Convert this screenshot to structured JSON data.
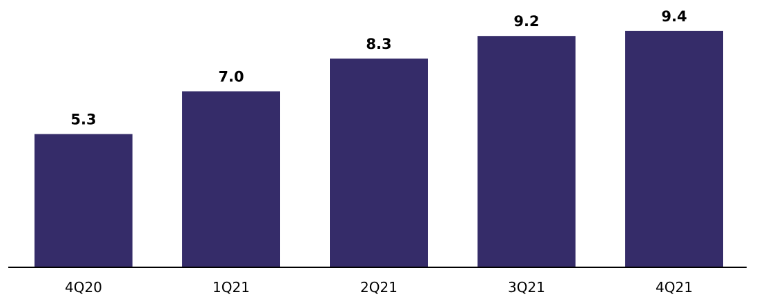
{
  "colors": {
    "bar": "#352C69",
    "axis": "#000000",
    "text": "#000000"
  },
  "chart_data": {
    "type": "bar",
    "categories": [
      "4Q20",
      "1Q21",
      "2Q21",
      "3Q21",
      "4Q21"
    ],
    "values": [
      5.3,
      7.0,
      8.3,
      9.2,
      9.4
    ],
    "value_labels": [
      "5.3",
      "7.0",
      "8.3",
      "9.2",
      "9.4"
    ],
    "title": "",
    "xlabel": "",
    "ylabel": "",
    "ylim": [
      0,
      10
    ],
    "grid": false,
    "legend": "none",
    "y_axis_visible": false
  }
}
